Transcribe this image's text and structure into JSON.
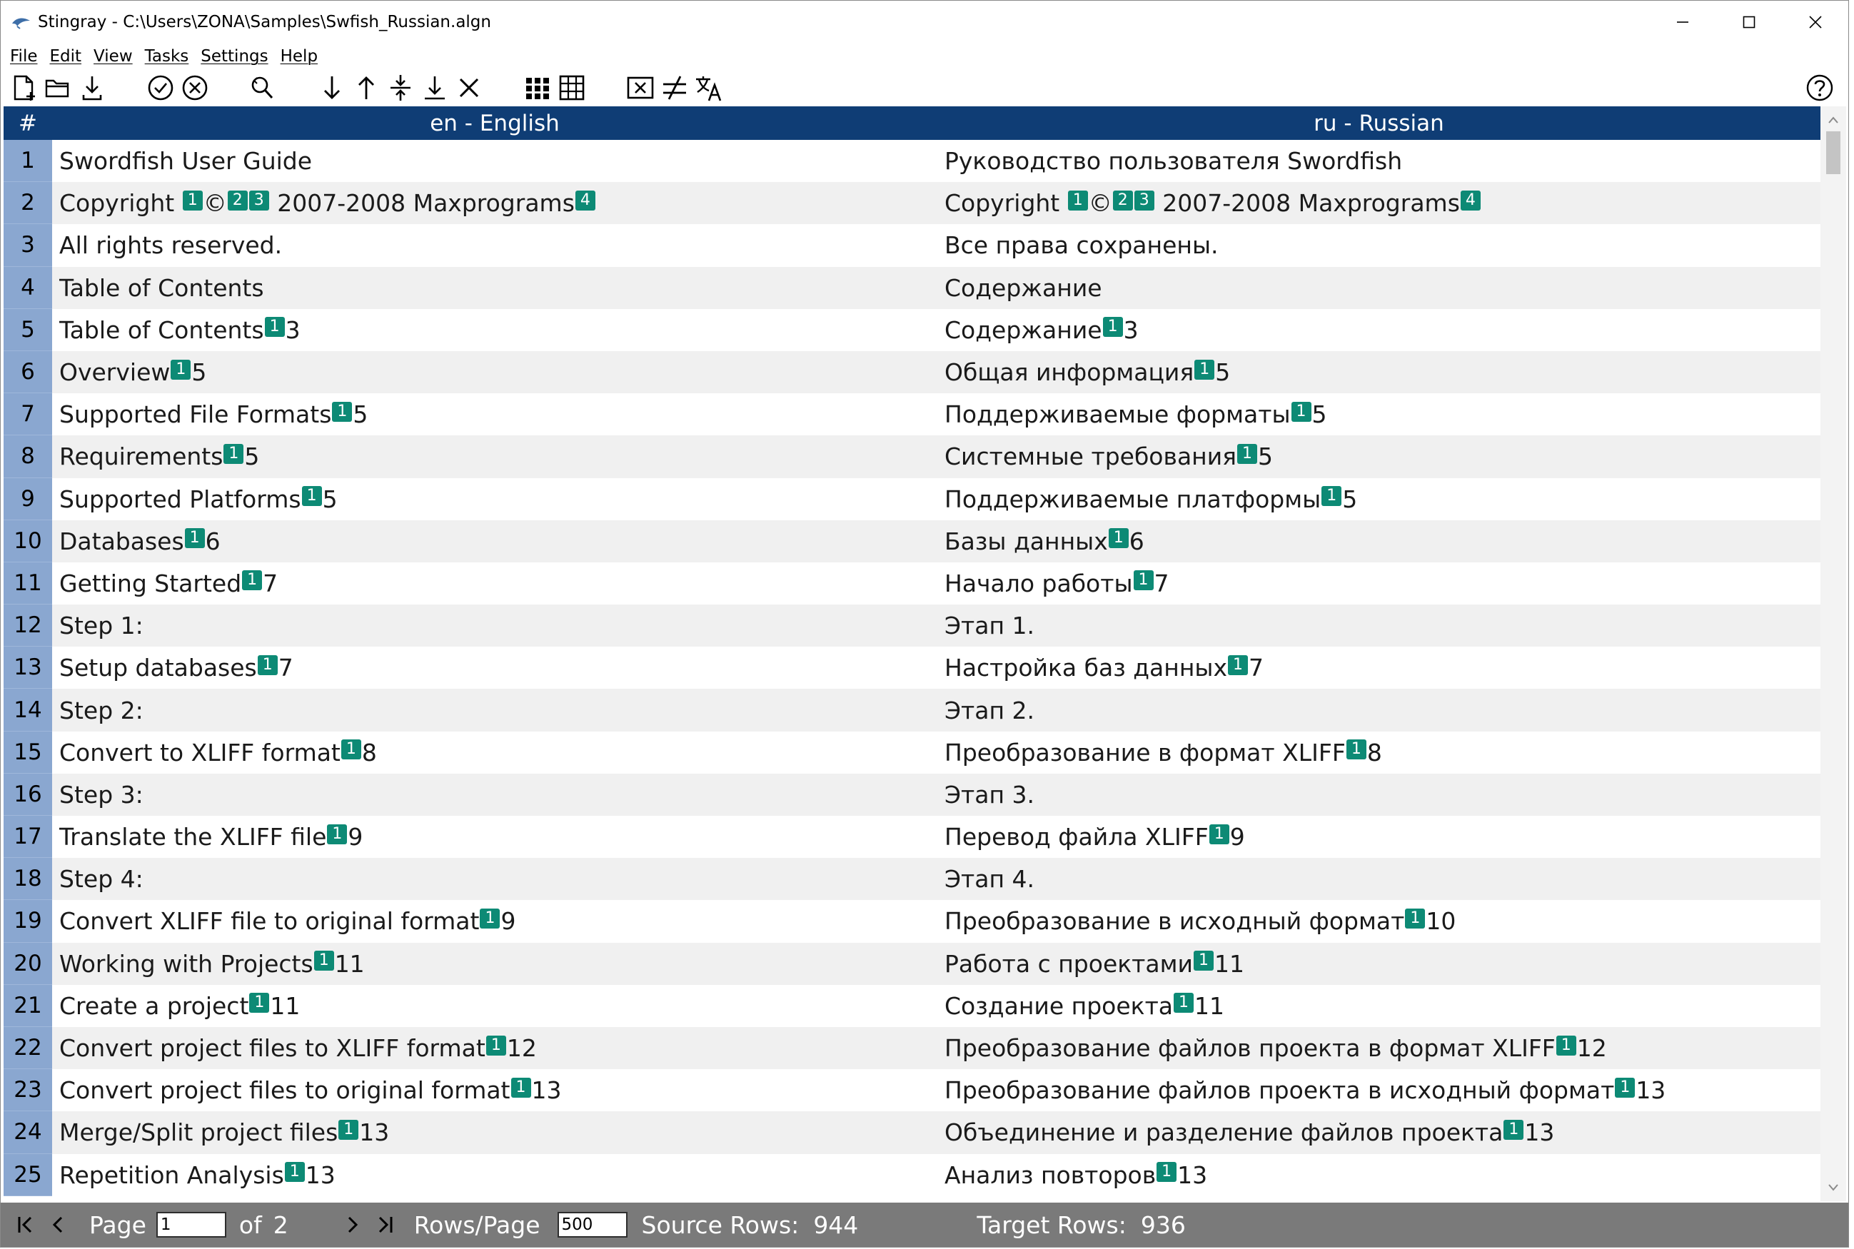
{
  "window": {
    "title": "Stingray - C:\\Users\\ZONA\\Samples\\Swfish_Russian.algn"
  },
  "menu": [
    "File",
    "Edit",
    "View",
    "Tasks",
    "Settings",
    "Help"
  ],
  "toolbar": {
    "icons": [
      "new-file-icon",
      "open-folder-icon",
      "save-download-icon",
      "confirm-check-icon",
      "cancel-x-icon",
      "search-replace-icon",
      "move-down-icon",
      "move-up-icon",
      "merge-split-icon",
      "move-to-bottom-icon",
      "delete-x-icon",
      "grid-dots-icon",
      "table-grid-icon",
      "remove-tags-icon",
      "not-equal-icon",
      "translate-icon",
      "help-icon"
    ]
  },
  "table": {
    "header": {
      "num": "#",
      "source": "en - English",
      "target": "ru - Russian"
    },
    "rows": [
      {
        "num": "1",
        "src": [
          {
            "t": "Swordfish User Guide"
          }
        ],
        "tgt": [
          {
            "t": "Руководство пользователя Swordfish"
          }
        ]
      },
      {
        "num": "2",
        "src": [
          {
            "t": "Copyright "
          },
          {
            "tag": "1"
          },
          {
            "t": "©"
          },
          {
            "tag": "2"
          },
          {
            "tag": "3"
          },
          {
            "t": " 2007-2008 Maxprograms"
          },
          {
            "tag": "4"
          }
        ],
        "tgt": [
          {
            "t": "Copyright "
          },
          {
            "tag": "1"
          },
          {
            "t": "©"
          },
          {
            "tag": "2"
          },
          {
            "tag": "3"
          },
          {
            "t": " 2007-2008 Maxprograms"
          },
          {
            "tag": "4"
          }
        ]
      },
      {
        "num": "3",
        "src": [
          {
            "t": "All rights reserved."
          }
        ],
        "tgt": [
          {
            "t": "Все права сохранены."
          }
        ]
      },
      {
        "num": "4",
        "src": [
          {
            "t": "Table of Contents"
          }
        ],
        "tgt": [
          {
            "t": "Содержание"
          }
        ]
      },
      {
        "num": "5",
        "src": [
          {
            "t": "Table of Contents"
          },
          {
            "tag": "1"
          },
          {
            "t": "3"
          }
        ],
        "tgt": [
          {
            "t": "Содержание"
          },
          {
            "tag": "1"
          },
          {
            "t": "3"
          }
        ]
      },
      {
        "num": "6",
        "src": [
          {
            "t": "Overview"
          },
          {
            "tag": "1"
          },
          {
            "t": "5"
          }
        ],
        "tgt": [
          {
            "t": "Общая информация"
          },
          {
            "tag": "1"
          },
          {
            "t": "5"
          }
        ]
      },
      {
        "num": "7",
        "src": [
          {
            "t": "Supported File Formats"
          },
          {
            "tag": "1"
          },
          {
            "t": "5"
          }
        ],
        "tgt": [
          {
            "t": "Поддерживаемые форматы"
          },
          {
            "tag": "1"
          },
          {
            "t": "5"
          }
        ]
      },
      {
        "num": "8",
        "src": [
          {
            "t": "Requirements"
          },
          {
            "tag": "1"
          },
          {
            "t": "5"
          }
        ],
        "tgt": [
          {
            "t": "Системные требования"
          },
          {
            "tag": "1"
          },
          {
            "t": "5"
          }
        ]
      },
      {
        "num": "9",
        "src": [
          {
            "t": "Supported Platforms"
          },
          {
            "tag": "1"
          },
          {
            "t": "5"
          }
        ],
        "tgt": [
          {
            "t": "Поддерживаемые платформы"
          },
          {
            "tag": "1"
          },
          {
            "t": "5"
          }
        ]
      },
      {
        "num": "10",
        "src": [
          {
            "t": "Databases"
          },
          {
            "tag": "1"
          },
          {
            "t": "6"
          }
        ],
        "tgt": [
          {
            "t": "Базы данных"
          },
          {
            "tag": "1"
          },
          {
            "t": "6"
          }
        ]
      },
      {
        "num": "11",
        "src": [
          {
            "t": "Getting Started"
          },
          {
            "tag": "1"
          },
          {
            "t": "7"
          }
        ],
        "tgt": [
          {
            "t": "Начало работы"
          },
          {
            "tag": "1"
          },
          {
            "t": "7"
          }
        ]
      },
      {
        "num": "12",
        "src": [
          {
            "t": "Step 1:"
          }
        ],
        "tgt": [
          {
            "t": "Этап 1."
          }
        ]
      },
      {
        "num": "13",
        "src": [
          {
            "t": "Setup databases"
          },
          {
            "tag": "1"
          },
          {
            "t": "7"
          }
        ],
        "tgt": [
          {
            "t": "Настройка баз данных"
          },
          {
            "tag": "1"
          },
          {
            "t": "7"
          }
        ]
      },
      {
        "num": "14",
        "src": [
          {
            "t": "Step 2:"
          }
        ],
        "tgt": [
          {
            "t": "Этап 2."
          }
        ]
      },
      {
        "num": "15",
        "src": [
          {
            "t": "Convert to XLIFF format"
          },
          {
            "tag": "1"
          },
          {
            "t": "8"
          }
        ],
        "tgt": [
          {
            "t": "Преобразование в формат XLIFF"
          },
          {
            "tag": "1"
          },
          {
            "t": "8"
          }
        ]
      },
      {
        "num": "16",
        "src": [
          {
            "t": "Step 3:"
          }
        ],
        "tgt": [
          {
            "t": "Этап 3."
          }
        ]
      },
      {
        "num": "17",
        "src": [
          {
            "t": "Translate the XLIFF file"
          },
          {
            "tag": "1"
          },
          {
            "t": "9"
          }
        ],
        "tgt": [
          {
            "t": "Перевод файла XLIFF"
          },
          {
            "tag": "1"
          },
          {
            "t": "9"
          }
        ]
      },
      {
        "num": "18",
        "src": [
          {
            "t": "Step 4:"
          }
        ],
        "tgt": [
          {
            "t": "Этап 4."
          }
        ]
      },
      {
        "num": "19",
        "src": [
          {
            "t": "Convert XLIFF file to original format"
          },
          {
            "tag": "1"
          },
          {
            "t": "9"
          }
        ],
        "tgt": [
          {
            "t": "Преобразование в исходный формат"
          },
          {
            "tag": "1"
          },
          {
            "t": "10"
          }
        ]
      },
      {
        "num": "20",
        "src": [
          {
            "t": "Working with Projects"
          },
          {
            "tag": "1"
          },
          {
            "t": "11"
          }
        ],
        "tgt": [
          {
            "t": "Работа с проектами"
          },
          {
            "tag": "1"
          },
          {
            "t": "11"
          }
        ]
      },
      {
        "num": "21",
        "src": [
          {
            "t": "Create a project"
          },
          {
            "tag": "1"
          },
          {
            "t": "11"
          }
        ],
        "tgt": [
          {
            "t": "Создание проекта"
          },
          {
            "tag": "1"
          },
          {
            "t": "11"
          }
        ]
      },
      {
        "num": "22",
        "src": [
          {
            "t": "Convert project files to XLIFF format"
          },
          {
            "tag": "1"
          },
          {
            "t": "12"
          }
        ],
        "tgt": [
          {
            "t": "Преобразование файлов проекта в формат XLIFF"
          },
          {
            "tag": "1"
          },
          {
            "t": "12"
          }
        ]
      },
      {
        "num": "23",
        "src": [
          {
            "t": "Convert project files to original format"
          },
          {
            "tag": "1"
          },
          {
            "t": "13"
          }
        ],
        "tgt": [
          {
            "t": "Преобразование файлов проекта в исходный формат"
          },
          {
            "tag": "1"
          },
          {
            "t": "13"
          }
        ]
      },
      {
        "num": "24",
        "src": [
          {
            "t": "Merge/Split project files"
          },
          {
            "tag": "1"
          },
          {
            "t": "13"
          }
        ],
        "tgt": [
          {
            "t": "Объединение и разделение файлов проекта"
          },
          {
            "tag": "1"
          },
          {
            "t": "13"
          }
        ]
      },
      {
        "num": "25",
        "src": [
          {
            "t": "Repetition Analysis"
          },
          {
            "tag": "1"
          },
          {
            "t": "13"
          }
        ],
        "tgt": [
          {
            "t": "Анализ повторов"
          },
          {
            "tag": "1"
          },
          {
            "t": "13"
          }
        ]
      }
    ]
  },
  "pager": {
    "page_label": "Page",
    "page_value": "1",
    "of_label": "of",
    "total_pages": "2",
    "rows_per_page_label": "Rows/Page",
    "rows_per_page_value": "500",
    "source_rows_label": "Source Rows:",
    "source_rows_value": "944",
    "target_rows_label": "Target Rows:",
    "target_rows_value": "936"
  },
  "colors": {
    "header_bg": "#0f3d75",
    "row_num_bg": "#8aa7d0",
    "tag_bg": "#0d8a75",
    "pager_bg": "#7a7a7a"
  }
}
